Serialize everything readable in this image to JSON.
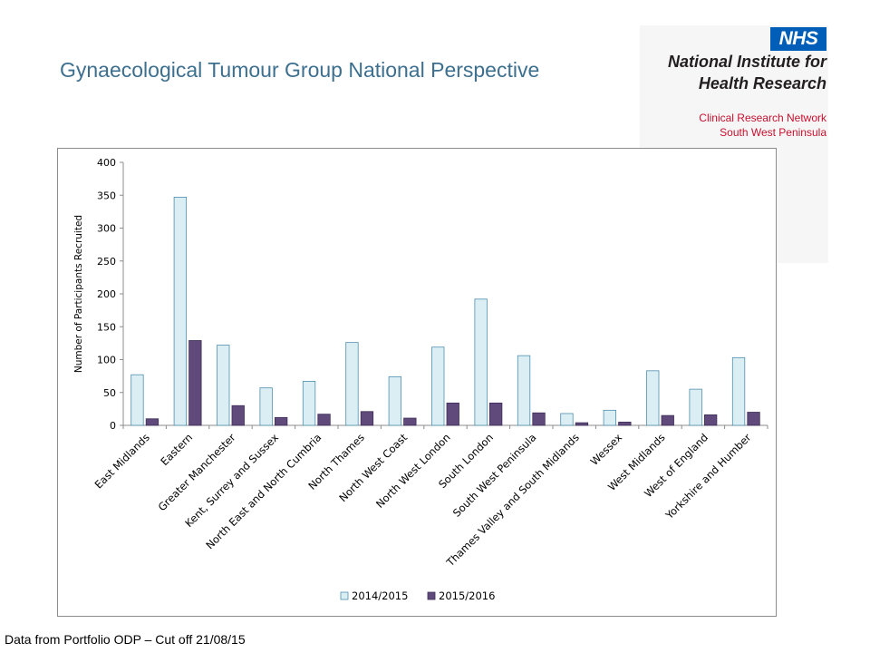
{
  "slide": {
    "title": "Gynaecological Tumour Group National Perspective",
    "footer": "Data from Portfolio ODP – Cut off 21/08/15"
  },
  "logo": {
    "badge": "NHS",
    "line1": "National Institute for",
    "line2": "Health Research",
    "line3": "Clinical Research Network",
    "line4": "South West Peninsula",
    "colors": {
      "badge": "#005eb8",
      "subtitle": "#c8102e"
    }
  },
  "chart_data": {
    "type": "bar",
    "ylabel": "Number of Participants Recruited",
    "ylim": [
      0,
      400
    ],
    "yticks": [
      0,
      50,
      100,
      150,
      200,
      250,
      300,
      350,
      400
    ],
    "categories": [
      "East Midlands",
      "Eastern",
      "Greater Manchester",
      "Kent, Surrey and Sussex",
      "North East and North Cumbria",
      "North Thames",
      "North West Coast",
      "North West London",
      "South London",
      "South West Peninsula",
      "Thames Valley and South Midlands",
      "Wessex",
      "West Midlands",
      "West of England",
      "Yorkshire and Humber"
    ],
    "series": [
      {
        "name": "2014/2015",
        "color": "#dbeef4",
        "stroke": "#4f8fae",
        "values": [
          77,
          347,
          122,
          57,
          67,
          126,
          74,
          119,
          192,
          106,
          18,
          23,
          83,
          55,
          103
        ]
      },
      {
        "name": "2015/2016",
        "color": "#5f4a7b",
        "stroke": "#3e2e58",
        "values": [
          10,
          129,
          30,
          12,
          17,
          21,
          11,
          34,
          34,
          19,
          4,
          5,
          15,
          16,
          20
        ]
      }
    ],
    "legend_position": "bottom",
    "grid": false
  }
}
